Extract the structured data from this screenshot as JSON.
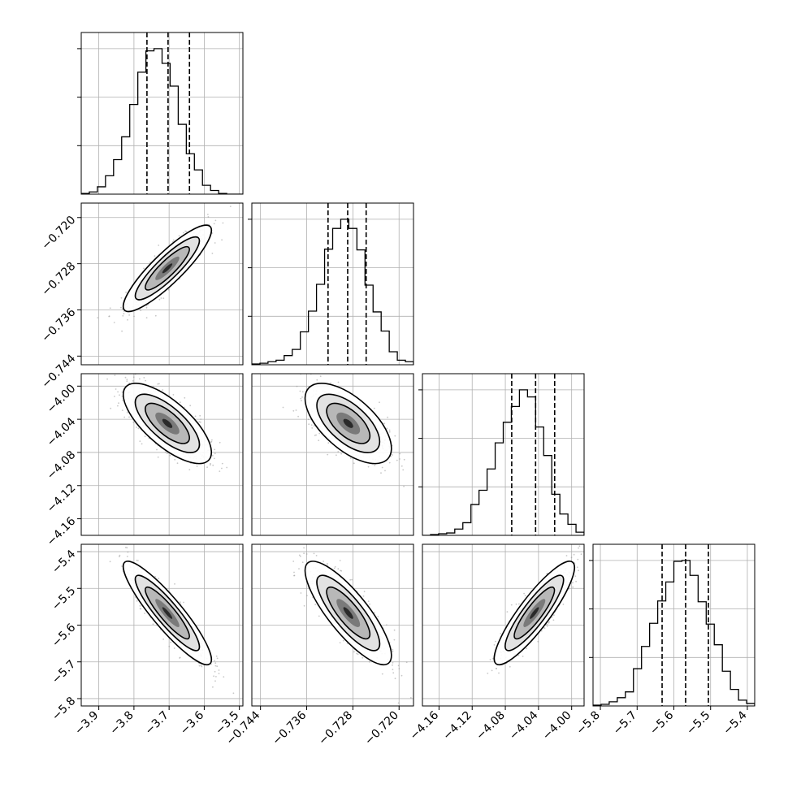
{
  "chart_data": {
    "type": "corner",
    "grid": true,
    "parameters": [
      {
        "range": [
          -3.95,
          -3.49
        ],
        "ticks": [
          -3.9,
          -3.8,
          -3.7,
          -3.6,
          -3.5
        ],
        "tick_labels": [
          "−3.9",
          "−3.8",
          "−3.7",
          "−3.6",
          "−3.5"
        ],
        "quantiles": [
          -3.763,
          -3.703,
          -3.642
        ],
        "hist": {
          "bins": [
            -3.95,
            -3.927,
            -3.904,
            -3.881,
            -3.858,
            -3.835,
            -3.812,
            -3.789,
            -3.766,
            -3.743,
            -3.72,
            -3.697,
            -3.674,
            -3.651,
            -3.628,
            -3.605,
            -3.582,
            -3.559,
            -3.536,
            -3.513,
            -3.49
          ],
          "counts": [
            1,
            3,
            10,
            25,
            47,
            78,
            122,
            166,
            195,
            198,
            178,
            147,
            95,
            55,
            33,
            12,
            5,
            1,
            0,
            0
          ]
        }
      },
      {
        "range": [
          -0.7455,
          -0.7175
        ],
        "ticks": [
          -0.744,
          -0.736,
          -0.728,
          -0.72
        ],
        "tick_labels": [
          "−0.744",
          "−0.736",
          "−0.728",
          "−0.720"
        ],
        "quantiles": [
          -0.7323,
          -0.7289,
          -0.7257
        ],
        "hist": {
          "bins": [
            -0.7455,
            -0.7441,
            -0.7427,
            -0.7413,
            -0.7399,
            -0.7385,
            -0.7371,
            -0.7357,
            -0.7343,
            -0.7329,
            -0.7315,
            -0.7301,
            -0.7287,
            -0.7273,
            -0.7259,
            -0.7245,
            -0.7231,
            -0.7217,
            -0.7203,
            -0.7189,
            -0.7175
          ],
          "counts": [
            1,
            2,
            4,
            6,
            12,
            20,
            43,
            70,
            105,
            151,
            178,
            190,
            178,
            150,
            104,
            69,
            44,
            17,
            6,
            4
          ]
        }
      },
      {
        "range": [
          -4.18,
          -3.985
        ],
        "ticks": [
          -4.16,
          -4.12,
          -4.08,
          -4.04,
          -4.0
        ],
        "tick_labels": [
          "−4.16",
          "−4.12",
          "−4.08",
          "−4.04",
          "−4.00"
        ],
        "quantiles": [
          -4.0723,
          -4.0435,
          -4.0205
        ],
        "hist": {
          "bins": [
            -4.18,
            -4.17025,
            -4.1605,
            -4.15075,
            -4.141,
            -4.13125,
            -4.1215,
            -4.11175,
            -4.102,
            -4.09225,
            -4.0825,
            -4.07275,
            -4.063,
            -4.05325,
            -4.0435,
            -4.03375,
            -4.024,
            -4.01425,
            -4.0045,
            -3.99475,
            -3.985
          ],
          "counts": [
            0,
            1,
            2,
            3,
            8,
            16,
            39,
            57,
            84,
            117,
            143,
            163,
            184,
            175,
            137,
            101,
            52,
            27,
            14,
            4
          ]
        }
      },
      {
        "range": [
          -5.82,
          -5.38
        ],
        "ticks": [
          -5.8,
          -5.7,
          -5.6,
          -5.5,
          -5.4
        ],
        "tick_labels": [
          "−5.8",
          "−5.7",
          "−5.6",
          "−5.5",
          "−5.4"
        ],
        "quantiles": [
          -5.632,
          -5.568,
          -5.506
        ],
        "hist": {
          "bins": [
            -5.82,
            -5.798,
            -5.776,
            -5.754,
            -5.732,
            -5.71,
            -5.688,
            -5.666,
            -5.644,
            -5.622,
            -5.6,
            -5.578,
            -5.556,
            -5.534,
            -5.512,
            -5.49,
            -5.468,
            -5.446,
            -5.424,
            -5.402,
            -5.38
          ],
          "counts": [
            1,
            2,
            5,
            10,
            17,
            45,
            72,
            100,
            127,
            150,
            175,
            176,
            158,
            126,
            99,
            74,
            42,
            20,
            7,
            3
          ]
        }
      }
    ],
    "pairs": [
      {
        "row": 1,
        "col": 0,
        "mean": [
          -3.705,
          -0.7288
        ],
        "sd": [
          0.057,
          0.0034
        ],
        "rho": 0.88
      },
      {
        "row": 2,
        "col": 0,
        "mean": [
          -3.705,
          -4.045
        ],
        "sd": [
          0.057,
          0.022
        ],
        "rho": -0.72
      },
      {
        "row": 2,
        "col": 1,
        "mean": [
          -0.7288,
          -4.045
        ],
        "sd": [
          0.0034,
          0.022
        ],
        "rho": -0.62
      },
      {
        "row": 3,
        "col": 0,
        "mean": [
          -3.705,
          -5.567
        ],
        "sd": [
          0.057,
          0.064
        ],
        "rho": -0.9
      },
      {
        "row": 3,
        "col": 1,
        "mean": [
          -0.7288,
          -5.567
        ],
        "sd": [
          0.0034,
          0.064
        ],
        "rho": -0.82
      },
      {
        "row": 3,
        "col": 2,
        "mean": [
          -4.045,
          -5.567
        ],
        "sd": [
          0.022,
          0.064
        ],
        "rho": 0.88
      }
    ]
  }
}
